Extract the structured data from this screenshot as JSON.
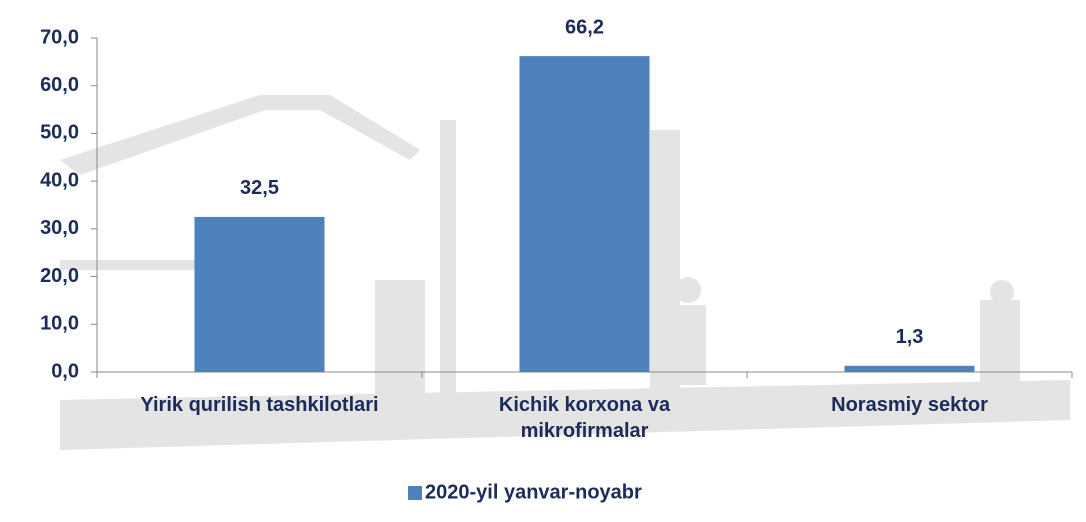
{
  "chart_data": {
    "type": "bar",
    "categories": [
      "Yirik qurilish tashkilotlari",
      "Kichik korxona va\nmikrofirmalar",
      "Norasmiy sektor"
    ],
    "series": [
      {
        "name": "2020-yil yanvar-noyabr",
        "color": "#4f81bd",
        "values": [
          32.5,
          66.2,
          1.3
        ],
        "value_labels": [
          "32,5",
          "66,2",
          "1,3"
        ]
      }
    ],
    "ylim": [
      0,
      70
    ],
    "yticks": [
      {
        "value": 0,
        "label": "0,0"
      },
      {
        "value": 10,
        "label": "10,0"
      },
      {
        "value": 20,
        "label": "20,0"
      },
      {
        "value": 30,
        "label": "30,0"
      },
      {
        "value": 40,
        "label": "40,0"
      },
      {
        "value": 50,
        "label": "50,0"
      },
      {
        "value": 60,
        "label": "60,0"
      },
      {
        "value": 70,
        "label": "70,0"
      }
    ],
    "legend": "bottom"
  }
}
